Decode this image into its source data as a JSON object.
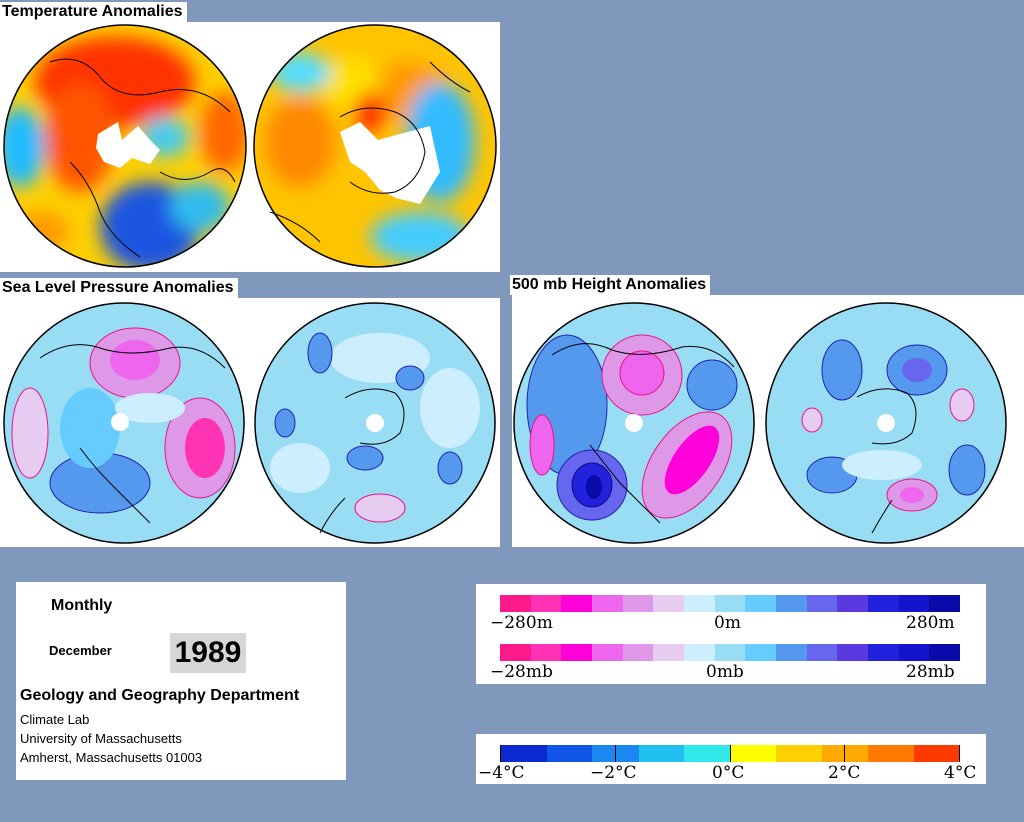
{
  "titles": {
    "temperature": "Temperature Anomalies",
    "slp": "Sea Level Pressure Anomalies",
    "height": "500 mb Height Anomalies"
  },
  "info": {
    "period": "Monthly",
    "month": "December",
    "year": "1989",
    "department": "Geology and Geography Department",
    "lab": "Climate Lab",
    "university": "University of Massachusetts",
    "address": "Amherst, Massachusetts 01003"
  },
  "legends": {
    "height": {
      "min": "−280m",
      "mid": "0m",
      "max": "280m"
    },
    "pressure": {
      "min": "−28mb",
      "mid": "0mb",
      "max": "28mb"
    },
    "temperature": {
      "t1": "−4°C",
      "t2": "−2°C",
      "t3": "0°C",
      "t4": "2°C",
      "t5": "4°C"
    }
  },
  "colors": {
    "anomaly_scale": [
      "#ff1a8c",
      "#ff33b3",
      "#ff00d9",
      "#ee66ee",
      "#dd99e8",
      "#e6ccf0",
      "#cceeff",
      "#99ddf5",
      "#66ccff",
      "#5599ee",
      "#6666ee",
      "#5a3ae0",
      "#2222dd",
      "#1414cc",
      "#0a0aa8"
    ],
    "temperature_scale": [
      "#0a2ad0",
      "#1155e8",
      "#1a88f0",
      "#22c0f0",
      "#30e8e8",
      "#ffff00",
      "#ffd000",
      "#ffaa00",
      "#ff7a00",
      "#ff3a00"
    ]
  }
}
